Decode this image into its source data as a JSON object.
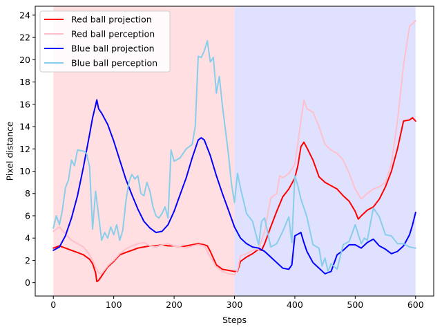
{
  "chart_data": {
    "type": "line",
    "title": "",
    "xlabel": "Steps",
    "ylabel": "Pixel distance",
    "xlim": [
      -30,
      630
    ],
    "ylim": [
      -1.2,
      24.8
    ],
    "xticks": [
      0,
      100,
      200,
      300,
      400,
      500,
      600
    ],
    "yticks": [
      0,
      2,
      4,
      6,
      8,
      10,
      12,
      14,
      16,
      18,
      20,
      22,
      24
    ],
    "legend_position": "top-left",
    "shaded_regions": [
      {
        "x_start": 0,
        "x_end": 300,
        "color": "#ffdfe1"
      },
      {
        "x_start": 300,
        "x_end": 600,
        "color": "#e0e0ff"
      }
    ],
    "series": [
      {
        "name": "Red ball projection",
        "color": "#ff0000",
        "x": [
          0,
          10,
          20,
          30,
          40,
          50,
          60,
          65,
          70,
          72,
          75,
          80,
          85,
          90,
          100,
          110,
          120,
          130,
          140,
          150,
          160,
          170,
          180,
          190,
          200,
          210,
          220,
          230,
          240,
          250,
          255,
          260,
          270,
          280,
          290,
          300,
          305,
          310,
          320,
          330,
          340,
          345,
          350,
          360,
          370,
          380,
          390,
          400,
          405,
          410,
          415,
          420,
          430,
          440,
          450,
          460,
          470,
          480,
          490,
          500,
          505,
          510,
          520,
          530,
          540,
          550,
          560,
          570,
          580,
          590,
          595,
          600
        ],
        "y": [
          3.1,
          3.3,
          3.1,
          2.9,
          2.7,
          2.5,
          2.1,
          1.7,
          0.9,
          0.1,
          0.2,
          0.6,
          1.0,
          1.4,
          1.9,
          2.5,
          2.7,
          2.9,
          3.1,
          3.2,
          3.3,
          3.3,
          3.4,
          3.3,
          3.3,
          3.2,
          3.3,
          3.4,
          3.5,
          3.4,
          3.3,
          2.8,
          1.6,
          1.2,
          1.1,
          1.0,
          1.0,
          1.9,
          2.3,
          2.6,
          3.0,
          2.9,
          3.5,
          5.0,
          6.4,
          7.7,
          8.4,
          9.4,
          10.5,
          12.2,
          12.6,
          12.1,
          11.0,
          9.5,
          9.0,
          8.7,
          8.4,
          7.8,
          7.3,
          6.4,
          5.7,
          6.0,
          6.5,
          6.8,
          7.5,
          8.6,
          10.0,
          12.0,
          14.5,
          14.6,
          14.8,
          14.5
        ]
      },
      {
        "name": "Red ball perception",
        "color": "#ffc0cb",
        "x": [
          0,
          10,
          20,
          30,
          40,
          50,
          60,
          65,
          70,
          75,
          80,
          90,
          100,
          110,
          120,
          130,
          140,
          150,
          160,
          170,
          180,
          190,
          200,
          210,
          220,
          230,
          240,
          250,
          260,
          270,
          280,
          290,
          300,
          305,
          310,
          320,
          330,
          340,
          350,
          360,
          370,
          375,
          380,
          390,
          400,
          405,
          410,
          415,
          420,
          430,
          440,
          450,
          460,
          470,
          480,
          490,
          500,
          510,
          520,
          530,
          540,
          550,
          560,
          570,
          580,
          590,
          600
        ],
        "y": [
          4.6,
          5.0,
          4.4,
          3.8,
          3.5,
          3.2,
          2.5,
          2.0,
          1.4,
          0.9,
          0.8,
          1.5,
          2.0,
          2.6,
          3.0,
          3.3,
          3.5,
          3.6,
          3.3,
          3.2,
          3.4,
          3.5,
          3.3,
          3.2,
          3.1,
          3.3,
          3.4,
          3.3,
          2.3,
          1.4,
          1.0,
          0.8,
          0.7,
          1.1,
          2.4,
          2.6,
          2.9,
          3.0,
          4.6,
          7.6,
          8.0,
          9.6,
          9.4,
          9.8,
          10.6,
          12.5,
          14.5,
          16.4,
          15.6,
          15.3,
          14.0,
          12.4,
          11.9,
          11.6,
          11.0,
          9.8,
          8.4,
          7.5,
          8.0,
          8.4,
          8.6,
          9.0,
          10.7,
          14.5,
          19.5,
          23.0,
          23.5
        ]
      },
      {
        "name": "Blue ball projection",
        "color": "#0000ff",
        "x": [
          0,
          10,
          20,
          30,
          40,
          50,
          60,
          65,
          70,
          72,
          75,
          80,
          90,
          100,
          110,
          120,
          130,
          140,
          150,
          160,
          170,
          180,
          190,
          200,
          210,
          220,
          230,
          240,
          245,
          250,
          255,
          260,
          270,
          280,
          290,
          300,
          310,
          320,
          330,
          340,
          350,
          360,
          370,
          380,
          390,
          395,
          400,
          410,
          415,
          420,
          430,
          440,
          450,
          460,
          470,
          480,
          490,
          500,
          510,
          520,
          530,
          540,
          550,
          560,
          570,
          580,
          590,
          595,
          600
        ],
        "y": [
          2.9,
          3.2,
          4.2,
          5.8,
          7.8,
          10.4,
          13.3,
          14.8,
          15.9,
          16.4,
          15.6,
          15.2,
          14.2,
          12.7,
          11.0,
          9.3,
          7.9,
          6.6,
          5.5,
          4.9,
          4.5,
          4.6,
          5.2,
          6.4,
          7.9,
          9.4,
          11.2,
          12.8,
          13.0,
          12.8,
          12.1,
          11.4,
          9.6,
          8.0,
          6.5,
          5.0,
          4.0,
          3.5,
          3.2,
          3.1,
          2.8,
          2.3,
          1.8,
          1.3,
          1.2,
          1.6,
          4.2,
          4.5,
          3.6,
          2.8,
          1.8,
          1.3,
          0.8,
          1.0,
          2.5,
          2.9,
          3.4,
          3.4,
          3.1,
          3.6,
          3.9,
          3.3,
          3.0,
          2.6,
          2.8,
          3.3,
          4.3,
          5.2,
          6.3
        ]
      },
      {
        "name": "Blue ball perception",
        "color": "#87ceeb",
        "x": [
          0,
          5,
          10,
          15,
          20,
          25,
          30,
          35,
          40,
          50,
          55,
          60,
          65,
          70,
          75,
          80,
          85,
          90,
          95,
          100,
          105,
          110,
          115,
          120,
          125,
          130,
          135,
          140,
          145,
          150,
          155,
          160,
          165,
          170,
          175,
          180,
          185,
          190,
          195,
          200,
          210,
          220,
          230,
          235,
          240,
          245,
          250,
          255,
          260,
          265,
          270,
          275,
          280,
          290,
          295,
          300,
          305,
          310,
          320,
          330,
          340,
          345,
          350,
          360,
          370,
          380,
          390,
          395,
          400,
          405,
          410,
          420,
          430,
          440,
          445,
          450,
          455,
          460,
          470,
          480,
          490,
          500,
          510,
          515,
          520,
          530,
          540,
          550,
          560,
          570,
          580,
          590,
          600
        ],
        "y": [
          4.9,
          6.0,
          5.2,
          6.5,
          8.5,
          9.2,
          11.0,
          10.5,
          11.9,
          11.8,
          11.6,
          10.4,
          4.8,
          8.2,
          6.0,
          3.8,
          4.5,
          4.0,
          5.0,
          4.3,
          5.2,
          3.8,
          4.7,
          7.2,
          9.0,
          9.7,
          9.3,
          9.6,
          8.0,
          7.8,
          9.0,
          8.2,
          6.8,
          6.0,
          5.8,
          6.2,
          6.8,
          5.8,
          11.9,
          10.9,
          11.2,
          12.0,
          12.4,
          14.0,
          20.3,
          20.2,
          20.8,
          21.7,
          19.8,
          20.2,
          17.0,
          18.5,
          15.9,
          11.5,
          8.9,
          7.2,
          9.8,
          8.5,
          6.2,
          5.5,
          3.4,
          5.5,
          5.8,
          3.2,
          3.5,
          4.6,
          5.9,
          3.6,
          9.6,
          8.7,
          7.5,
          5.9,
          3.4,
          3.1,
          1.5,
          2.2,
          1.0,
          1.7,
          1.2,
          3.4,
          3.7,
          5.2,
          3.5,
          4.0,
          3.8,
          6.7,
          5.9,
          4.3,
          4.2,
          3.5,
          3.5,
          3.2,
          3.1
        ]
      }
    ]
  }
}
